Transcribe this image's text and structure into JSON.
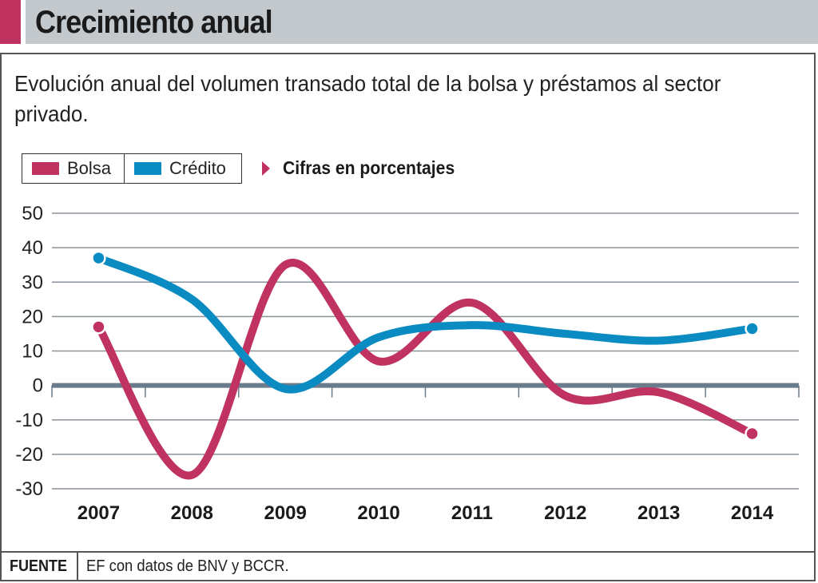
{
  "header": {
    "title": "Crecimiento anual",
    "accent_color": "#c0325f"
  },
  "subtitle": "Evolución anual del volumen transado total de la bolsa y préstamos al sector privado.",
  "legend": {
    "items": [
      {
        "label": "Bolsa",
        "color": "#c0325f"
      },
      {
        "label": "Crédito",
        "color": "#0a8bc2"
      }
    ],
    "note_icon": "triangle-right-icon",
    "note": "Cifras en porcentajes"
  },
  "footer": {
    "label": "FUENTE",
    "text": "EF con datos de BNV y BCCR."
  },
  "chart_data": {
    "type": "line",
    "title": "Crecimiento anual",
    "subtitle": "Evolución anual del volumen transado total de la bolsa y préstamos al sector privado.",
    "xlabel": "",
    "ylabel": "Cifras en porcentajes",
    "categories": [
      "2007",
      "2008",
      "2009",
      "2010",
      "2011",
      "2012",
      "2013",
      "2014"
    ],
    "series": [
      {
        "name": "Bolsa",
        "color": "#c0325f",
        "values": [
          17,
          -26,
          35,
          7,
          24,
          -3,
          -2,
          -14
        ]
      },
      {
        "name": "Crédito",
        "color": "#0a8bc2",
        "values": [
          37,
          25,
          -1,
          14,
          17.5,
          15,
          13,
          16.5
        ]
      }
    ],
    "ylim": [
      -30,
      50
    ],
    "yticks": [
      50,
      40,
      30,
      20,
      10,
      0,
      -10,
      -20,
      -30
    ],
    "grid": true,
    "legend_position": "top-left",
    "smooth": true,
    "endpoint_markers": true
  }
}
